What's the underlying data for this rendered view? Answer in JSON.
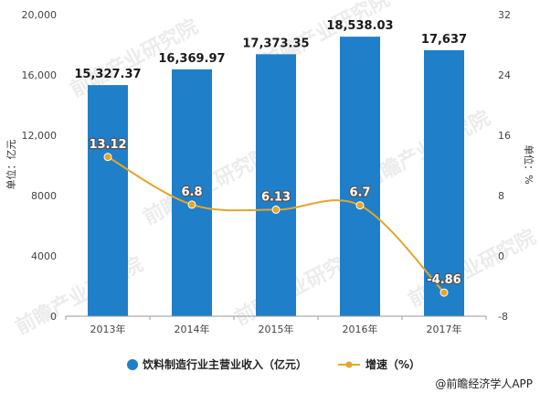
{
  "chart_data": {
    "type": "bar",
    "categories": [
      "2013年",
      "2014年",
      "2015年",
      "2016年",
      "2017年"
    ],
    "series": [
      {
        "name": "饮料制造行业主营业收入（亿元）",
        "type": "bar",
        "axis": "left",
        "values": [
          15327.37,
          16369.97,
          17373.35,
          18538.03,
          17637
        ],
        "labels": [
          "15,327.37",
          "16,369.97",
          "17,373.35",
          "18,538.03",
          "17,637"
        ],
        "color": "#1f7fc9"
      },
      {
        "name": "增速（%）",
        "type": "line",
        "axis": "right",
        "values": [
          13.12,
          6.8,
          6.13,
          6.7,
          -4.86
        ],
        "labels": [
          "13.12",
          "6.8",
          "6.13",
          "6.7",
          "-4.86"
        ],
        "color": "#e6a52a"
      }
    ],
    "ylabel": "单位：亿元",
    "y2label": "单位：%",
    "ylim": [
      0,
      20000
    ],
    "yticks": [
      "0",
      "4000",
      "8000",
      "12,000",
      "16,000",
      "20,000"
    ],
    "y2lim": [
      -8,
      32
    ],
    "y2ticks": [
      "-8",
      "0",
      "8",
      "16",
      "24",
      "32"
    ],
    "grid": false,
    "legend": "bottom-left"
  },
  "source": "@前瞻经济学人APP",
  "watermark": "前瞻产业研究院"
}
